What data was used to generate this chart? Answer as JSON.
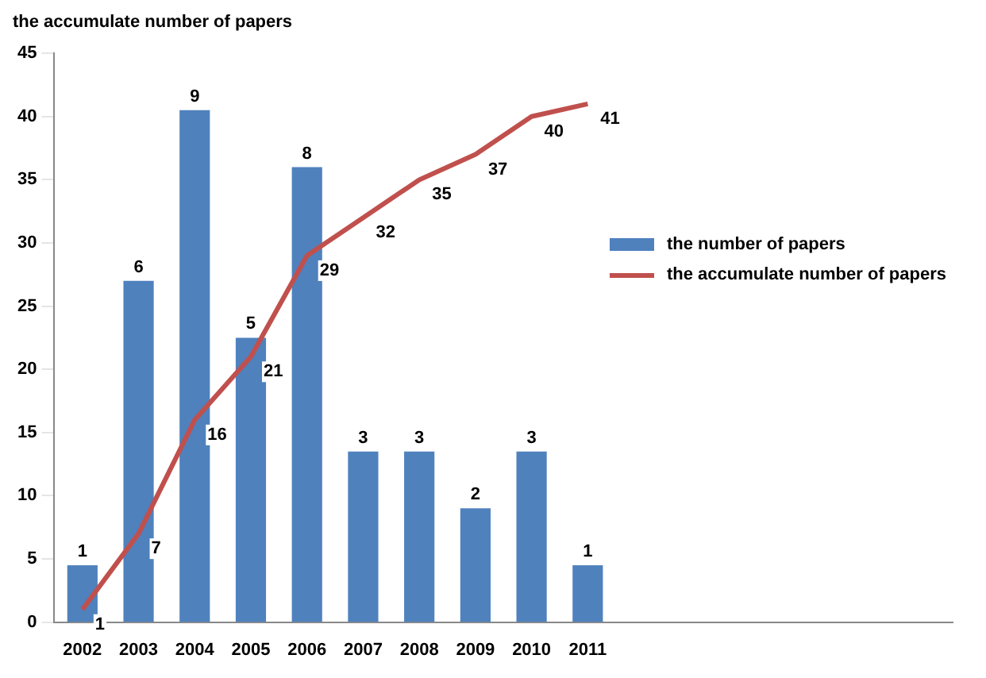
{
  "chart_data": {
    "type": "bar",
    "ylabel": "the accumulate number of papers",
    "categories": [
      "2002",
      "2003",
      "2004",
      "2005",
      "2006",
      "2007",
      "2008",
      "2009",
      "2010",
      "2011",
      null,
      null,
      null,
      null,
      null,
      null
    ],
    "series": [
      {
        "name": "the number of papers",
        "axis": "y2",
        "color": "#4f81bd",
        "values": [
          1,
          6,
          9,
          5,
          8,
          3,
          3,
          2,
          3,
          1,
          null,
          null,
          null,
          null,
          null,
          null
        ]
      },
      {
        "name": "the accumulate number of papers",
        "type": "line",
        "color": "#c0504d",
        "values": [
          1,
          7,
          16,
          21,
          29,
          32,
          35,
          37,
          40,
          41,
          null,
          null,
          null,
          null,
          null,
          null
        ]
      }
    ],
    "ylim": [
      0,
      45
    ],
    "yticks": [
      0,
      5,
      10,
      15,
      20,
      25,
      30,
      35,
      40,
      45
    ],
    "y2lim": [
      0,
      10
    ],
    "data_labels": true,
    "grid": false,
    "legend": "right",
    "marker": "none"
  }
}
